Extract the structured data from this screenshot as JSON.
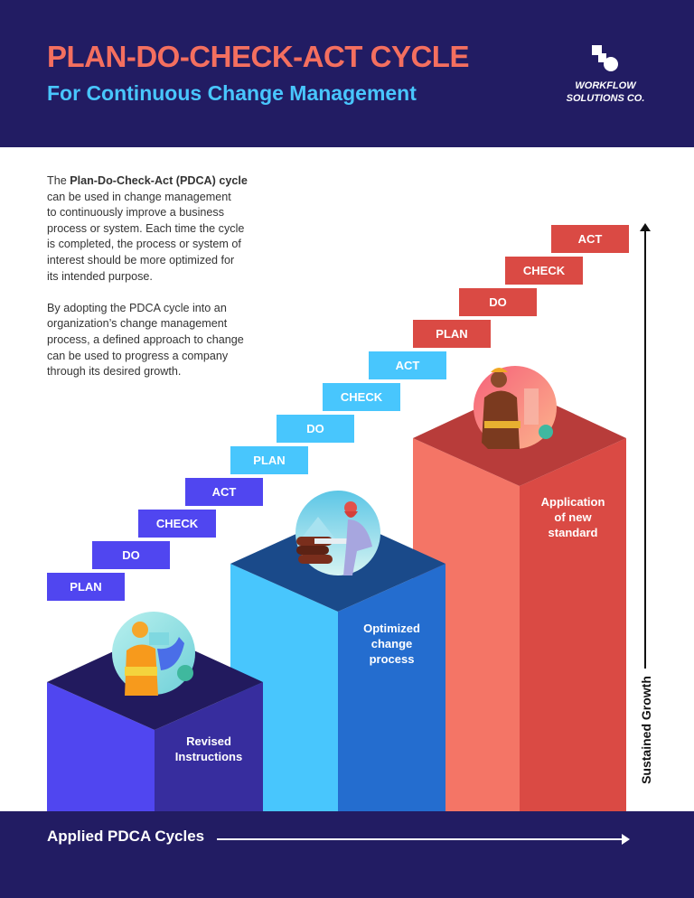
{
  "header": {
    "title": "PLAN-DO-CHECK-ACT CYCLE",
    "subtitle": "For Continuous Change Management",
    "logo_line1": "WORKFLOW",
    "logo_line2": "SOLUTIONS CO."
  },
  "intro": {
    "p1_prefix": "The ",
    "p1_bold": "Plan-Do-Check-Act (PDCA) cycle",
    "p1_lines": [
      "can be used in change management",
      "to continuously improve a business",
      "process or system. Each time the cycle",
      "is completed, the process or system of",
      "interest should be more optimized for",
      "its intended purpose."
    ],
    "p2_lines": [
      "By adopting the PDCA cycle into an",
      "organization’s change management",
      "process, a defined approach to change",
      "can be used to progress a company",
      "through its desired growth."
    ]
  },
  "cycles": [
    {
      "color": "#5046f0",
      "steps": [
        "PLAN",
        "DO",
        "CHECK",
        "ACT"
      ],
      "pillar_label": [
        "Revised",
        "Instructions"
      ]
    },
    {
      "color": "#48c6fd",
      "steps": [
        "PLAN",
        "DO",
        "CHECK",
        "ACT"
      ],
      "pillar_label": [
        "Optimized",
        "change",
        "process"
      ]
    },
    {
      "color": "#da4a44",
      "steps": [
        "PLAN",
        "DO",
        "CHECK",
        "ACT"
      ],
      "pillar_label": [
        "Application",
        "of new",
        "standard"
      ]
    }
  ],
  "axes": {
    "x_label": "Applied PDCA Cycles",
    "y_label": "Sustained Growth"
  },
  "colors": {
    "header_bg": "#221c63",
    "title": "#f46f5f",
    "subtitle": "#48c6fd"
  }
}
